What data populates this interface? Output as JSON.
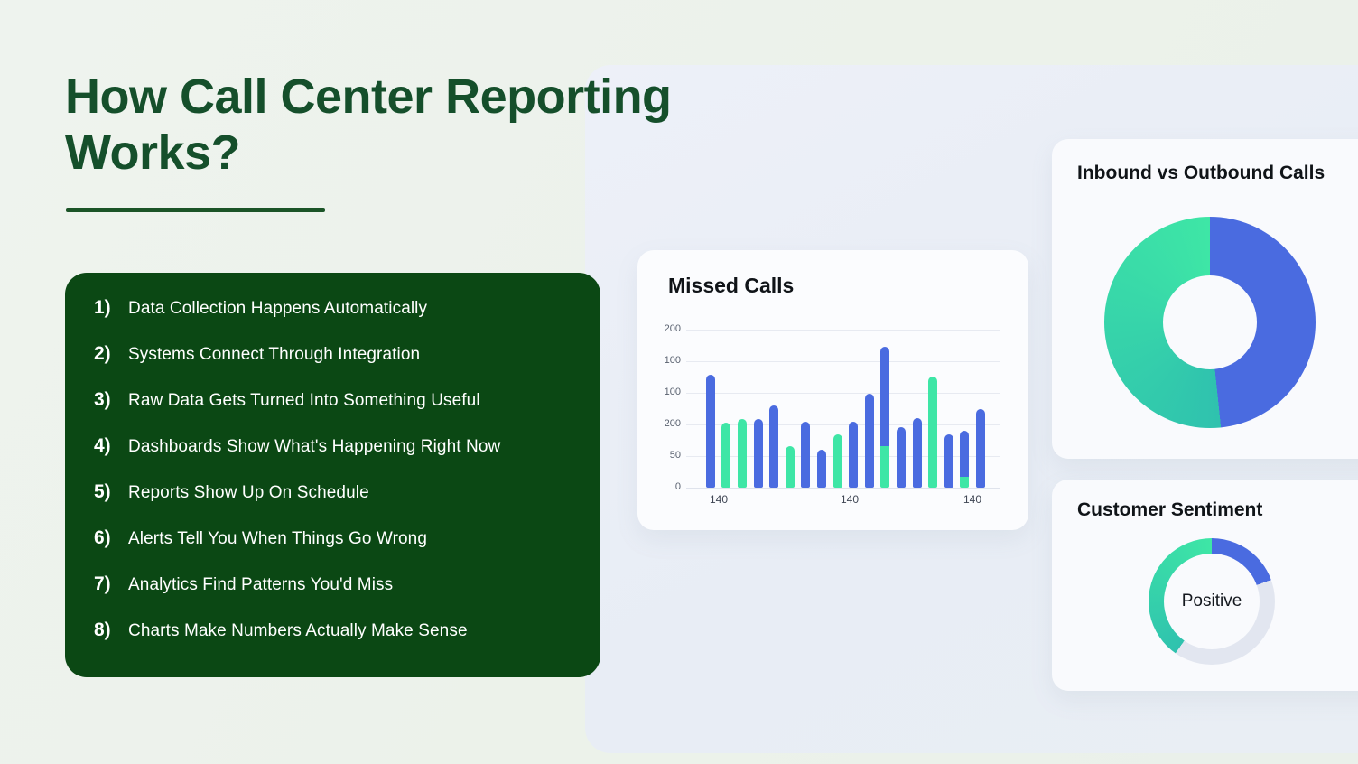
{
  "page": {
    "title_line1": "How Call Center Reporting",
    "title_line2": "Works?"
  },
  "steps": [
    {
      "num": "1)",
      "label": "Data Collection Happens Automatically"
    },
    {
      "num": "2)",
      "label": "Systems Connect Through Integration"
    },
    {
      "num": "3)",
      "label": "Raw Data Gets Turned Into Something Useful"
    },
    {
      "num": "4)",
      "label": "Dashboards Show What's Happening Right Now"
    },
    {
      "num": "5)",
      "label": "Reports Show Up On Schedule"
    },
    {
      "num": "6)",
      "label": "Alerts Tell You When Things Go Wrong"
    },
    {
      "num": "7)",
      "label": "Analytics Find Patterns You'd Miss"
    },
    {
      "num": "8)",
      "label": "Charts Make Numbers Actually Make Sense"
    }
  ],
  "colors": {
    "blue": "#4a6be0",
    "green": "#3ee6a6",
    "green_teal": "#2fc2ae",
    "gray": "#e2e6f0",
    "dark_green_card": "#0b4814",
    "title_green": "#154f2b"
  },
  "chart_data": [
    {
      "type": "bar",
      "title": "Missed Calls",
      "y_tick_labels": [
        "200",
        "100",
        "100",
        "200",
        "50",
        "0"
      ],
      "x_tick_labels": [
        "140",
        "140",
        "140"
      ],
      "units_per_gridline": 50,
      "ylim": [
        0,
        250
      ],
      "grid": true,
      "bars": [
        {
          "green": 0,
          "blue": 179
        },
        {
          "green": 103,
          "blue": 0
        },
        {
          "green": 108,
          "blue": 0
        },
        {
          "green": 0,
          "blue": 108
        },
        {
          "green": 0,
          "blue": 130
        },
        {
          "green": 66,
          "blue": 0
        },
        {
          "green": 0,
          "blue": 104
        },
        {
          "green": 0,
          "blue": 60
        },
        {
          "green": 84,
          "blue": 0
        },
        {
          "green": 0,
          "blue": 104
        },
        {
          "green": 0,
          "blue": 149
        },
        {
          "green": 66,
          "blue": 157
        },
        {
          "green": 0,
          "blue": 96
        },
        {
          "green": 0,
          "blue": 110
        },
        {
          "green": 176,
          "blue": 0
        },
        {
          "green": 0,
          "blue": 84
        },
        {
          "green": 17,
          "blue": 73
        },
        {
          "green": 0,
          "blue": 124
        }
      ]
    },
    {
      "type": "donut",
      "title": "Inbound vs Outbound Calls",
      "slices": [
        {
          "name": "blue",
          "start_deg": 0,
          "end_deg": 174
        },
        {
          "name": "green",
          "start_deg": 174,
          "end_deg": 360
        }
      ]
    },
    {
      "type": "donut-ring",
      "title": "Customer Sentiment",
      "center_label": "Positive",
      "slices": [
        {
          "name": "blue",
          "start_deg": 0,
          "end_deg": 70
        },
        {
          "name": "gray",
          "start_deg": 70,
          "end_deg": 215
        },
        {
          "name": "green",
          "start_deg": 215,
          "end_deg": 360
        }
      ]
    }
  ]
}
